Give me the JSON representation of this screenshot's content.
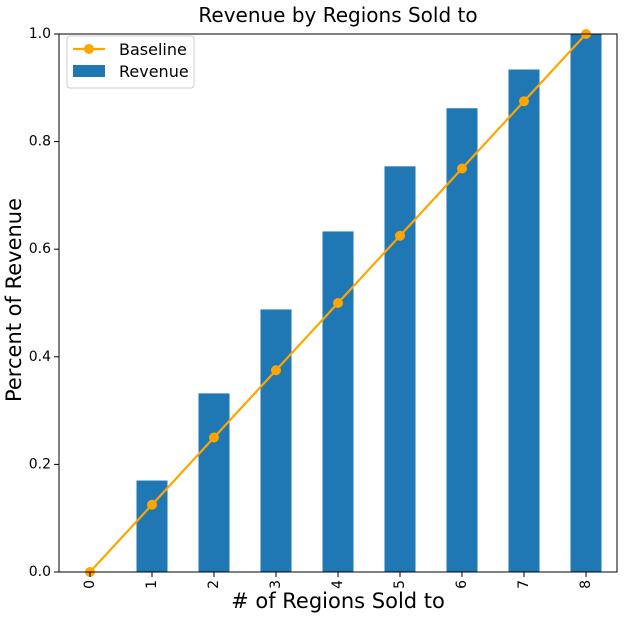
{
  "chart_data": {
    "type": "bar",
    "title": "Revenue by Regions Sold to",
    "xlabel": "# of Regions Sold to",
    "ylabel": "Percent of Revenue",
    "categories": [
      "0",
      "1",
      "2",
      "3",
      "4",
      "5",
      "6",
      "7",
      "8"
    ],
    "ylim": [
      0,
      1.0
    ],
    "yticks": [
      "0.0",
      "0.2",
      "0.4",
      "0.6",
      "0.8",
      "1.0"
    ],
    "grid": false,
    "legend_position": "top-left",
    "series": [
      {
        "name": "Revenue",
        "type": "bar",
        "color": "#1f77b4",
        "values": [
          0.0,
          0.17,
          0.332,
          0.488,
          0.633,
          0.754,
          0.862,
          0.934,
          1.0
        ]
      },
      {
        "name": "Baseline",
        "type": "line",
        "color": "#ffa500",
        "values": [
          0.0,
          0.125,
          0.25,
          0.375,
          0.5,
          0.625,
          0.75,
          0.875,
          1.0
        ]
      }
    ]
  }
}
